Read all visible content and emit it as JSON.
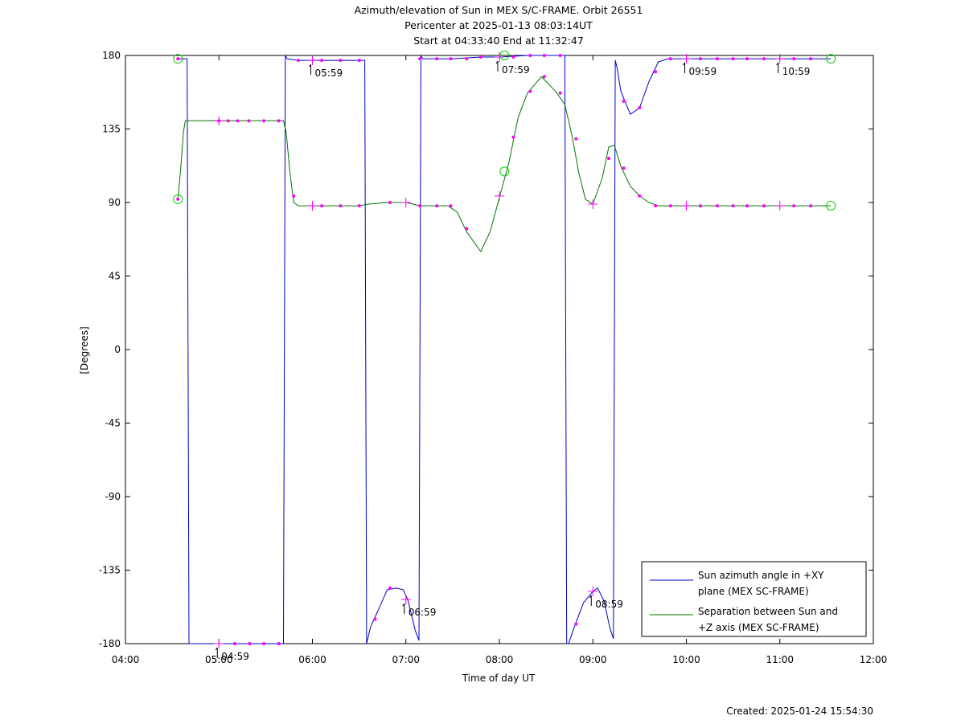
{
  "chart_data": {
    "type": "line",
    "title": [
      "Azimuth/elevation of Sun in MEX S/C-FRAME.  Orbit 26551",
      "Pericenter at 2025-01-13 08:03:14UT",
      "Start at 04:33:40 End at 11:32:47"
    ],
    "xlabel": "Time of day UT",
    "ylabel": "[Degrees]",
    "xlim": [
      4.0,
      12.0
    ],
    "ylim": [
      -180,
      180
    ],
    "x_unit": "hours of day UT",
    "x_ticks": [
      {
        "v": 4,
        "label": "04:00"
      },
      {
        "v": 5,
        "label": "05:00"
      },
      {
        "v": 6,
        "label": "06:00"
      },
      {
        "v": 7,
        "label": "07:00"
      },
      {
        "v": 8,
        "label": "08:00"
      },
      {
        "v": 9,
        "label": "09:00"
      },
      {
        "v": 10,
        "label": "10:00"
      },
      {
        "v": 11,
        "label": "11:00"
      },
      {
        "v": 12,
        "label": "12:00"
      }
    ],
    "y_ticks": [
      {
        "v": 180,
        "label": "180"
      },
      {
        "v": 135,
        "label": "135"
      },
      {
        "v": 90,
        "label": "90"
      },
      {
        "v": 45,
        "label": "45"
      },
      {
        "v": 0,
        "label": "0"
      },
      {
        "v": -45,
        "label": "-45"
      },
      {
        "v": -90,
        "label": "-90"
      },
      {
        "v": -135,
        "label": "-135"
      },
      {
        "v": -180,
        "label": "-180"
      }
    ],
    "grid": false,
    "legend_position": "bottom-right",
    "series": [
      {
        "name": "Sun azimuth angle in +XY plane (MEX SC-FRAME)",
        "legend_lines": [
          "Sun azimuth angle in +XY",
          "plane (MEX SC-FRAME)"
        ],
        "color": "#0000cc",
        "x": [
          4.561,
          4.64,
          4.66,
          4.68,
          5.0,
          5.69,
          5.71,
          5.73,
          5.85,
          6.0,
          6.3,
          6.5,
          6.56,
          6.58,
          6.62,
          6.7,
          6.8,
          6.9,
          6.97,
          7.02,
          7.1,
          7.14,
          7.16,
          7.18,
          7.5,
          7.8,
          8.0,
          8.3,
          8.6,
          8.7,
          8.72,
          8.74,
          8.8,
          8.9,
          9.0,
          9.05,
          9.12,
          9.18,
          9.22,
          9.24,
          9.26,
          9.3,
          9.4,
          9.5,
          9.6,
          9.7,
          9.8,
          10.0,
          10.5,
          11.0,
          11.546
        ],
        "y": [
          178,
          178,
          178,
          -180,
          -180,
          -180,
          180,
          178,
          177,
          177,
          177,
          177,
          177,
          -180,
          -170,
          -160,
          -147,
          -146,
          -147,
          -153,
          -172,
          -178,
          180,
          178,
          178,
          179,
          179,
          180,
          180,
          180,
          -180,
          -180,
          -170,
          -155,
          -148,
          -146,
          -154,
          -170,
          -177,
          177,
          172,
          158,
          144,
          148,
          164,
          176,
          178,
          178,
          178,
          178,
          178
        ]
      },
      {
        "name": "Separation between Sun and +Z axis (MEX SC-FRAME)",
        "legend_lines": [
          "Separation between Sun and",
          "+Z axis (MEX SC-FRAME)"
        ],
        "color": "#007700",
        "x": [
          4.561,
          4.59,
          4.62,
          4.64,
          4.68,
          5.0,
          5.69,
          5.72,
          5.76,
          5.8,
          5.85,
          6.0,
          6.5,
          6.6,
          6.8,
          7.0,
          7.15,
          7.2,
          7.45,
          7.55,
          7.65,
          7.8,
          7.9,
          8.0,
          8.1,
          8.2,
          8.3,
          8.45,
          8.6,
          8.7,
          8.78,
          8.85,
          8.92,
          9.0,
          9.1,
          9.17,
          9.23,
          9.3,
          9.4,
          9.5,
          9.6,
          9.7,
          10.0,
          11.0,
          11.546
        ],
        "y": [
          92,
          110,
          133,
          140,
          140,
          140,
          140,
          133,
          108,
          90,
          88,
          88,
          88,
          89,
          90,
          90,
          88,
          88,
          88,
          84,
          72,
          60,
          72,
          93,
          114,
          142,
          157,
          167,
          158,
          150,
          130,
          108,
          92,
          89,
          105,
          124,
          125,
          112,
          100,
          94,
          90,
          88,
          88,
          88,
          88
        ]
      }
    ],
    "dot_markers": {
      "color": "#ff00ff",
      "points": [
        [
          4.561,
          178
        ],
        [
          4.561,
          92
        ],
        [
          5.0,
          140
        ],
        [
          5.1,
          140
        ],
        [
          5.2,
          140
        ],
        [
          5.32,
          140
        ],
        [
          5.48,
          140
        ],
        [
          5.64,
          140
        ],
        [
          5.17,
          -180
        ],
        [
          5.33,
          -180
        ],
        [
          5.48,
          -180
        ],
        [
          5.64,
          -180
        ],
        [
          5.85,
          177
        ],
        [
          6.1,
          177
        ],
        [
          6.3,
          177
        ],
        [
          6.5,
          177
        ],
        [
          5.8,
          94
        ],
        [
          6.1,
          88
        ],
        [
          6.3,
          88
        ],
        [
          6.5,
          88
        ],
        [
          6.83,
          90
        ],
        [
          7.15,
          88
        ],
        [
          7.33,
          88
        ],
        [
          7.48,
          88
        ],
        [
          6.67,
          -165
        ],
        [
          6.83,
          -146
        ],
        [
          7.15,
          178
        ],
        [
          7.33,
          178
        ],
        [
          7.48,
          178
        ],
        [
          7.65,
          178
        ],
        [
          7.8,
          179
        ],
        [
          8.15,
          179
        ],
        [
          8.33,
          180
        ],
        [
          8.48,
          180
        ],
        [
          8.65,
          180
        ],
        [
          7.65,
          74
        ],
        [
          8.15,
          130
        ],
        [
          8.33,
          158
        ],
        [
          8.48,
          167
        ],
        [
          8.65,
          157
        ],
        [
          8.82,
          129
        ],
        [
          9.17,
          117
        ],
        [
          9.33,
          111
        ],
        [
          9.5,
          94
        ],
        [
          8.82,
          -168
        ],
        [
          9.33,
          152
        ],
        [
          9.5,
          148
        ],
        [
          9.67,
          170
        ],
        [
          9.83,
          178
        ],
        [
          10.15,
          178
        ],
        [
          10.33,
          178
        ],
        [
          10.5,
          178
        ],
        [
          10.65,
          178
        ],
        [
          10.83,
          178
        ],
        [
          11.15,
          178
        ],
        [
          11.33,
          178
        ],
        [
          9.67,
          88
        ],
        [
          9.83,
          88
        ],
        [
          10.15,
          88
        ],
        [
          10.33,
          88
        ],
        [
          10.5,
          88
        ],
        [
          10.65,
          88
        ],
        [
          10.83,
          88
        ],
        [
          11.15,
          88
        ],
        [
          11.33,
          88
        ]
      ]
    },
    "cross_markers": {
      "color": "#ff00ff",
      "points": [
        [
          5.0,
          -180
        ],
        [
          5.0,
          140
        ],
        [
          6.0,
          177
        ],
        [
          6.0,
          88
        ],
        [
          7.0,
          -153
        ],
        [
          7.0,
          90
        ],
        [
          8.0,
          179
        ],
        [
          8.0,
          94
        ],
        [
          9.0,
          -148
        ],
        [
          9.0,
          89
        ],
        [
          10.0,
          178
        ],
        [
          10.0,
          88
        ],
        [
          11.0,
          178
        ],
        [
          11.0,
          88
        ]
      ]
    },
    "circle_markers": {
      "color": "#00cc00",
      "points": [
        [
          4.561,
          178
        ],
        [
          4.561,
          92
        ],
        [
          8.054,
          180
        ],
        [
          8.054,
          109
        ],
        [
          11.546,
          178
        ],
        [
          11.546,
          88
        ]
      ]
    },
    "annotations": [
      {
        "text": "04:59",
        "x": 4.983,
        "y": -180
      },
      {
        "text": "05:59",
        "x": 5.983,
        "y": 177
      },
      {
        "text": "06:59",
        "x": 6.983,
        "y": -153
      },
      {
        "text": "07:59",
        "x": 7.983,
        "y": 179
      },
      {
        "text": "08:59",
        "x": 8.983,
        "y": -148
      },
      {
        "text": "09:59",
        "x": 9.983,
        "y": 178
      },
      {
        "text": "10:59",
        "x": 10.983,
        "y": 178
      }
    ]
  },
  "footer": {
    "created": "Created: 2025-01-24 15:54:30"
  }
}
